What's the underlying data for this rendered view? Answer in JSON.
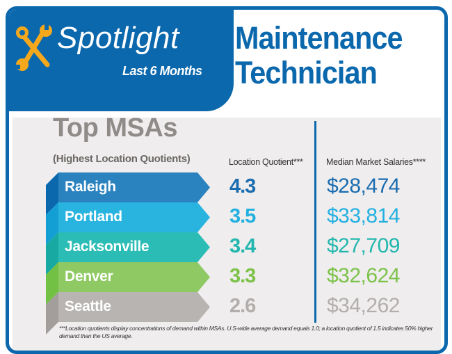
{
  "header": {
    "spotlight": "Spotlight",
    "period": "Last 6 Months",
    "job_title_line1": "Maintenance",
    "job_title_line2": "Technician",
    "icon": "wrench-screwdriver-icon"
  },
  "section": {
    "title": "Top MSAs",
    "subtitle": "(Highest Location Quotients)",
    "col_lq": "Location Quotient***",
    "col_salary": "Median Market Salaries****"
  },
  "rows": [
    {
      "city": "Raleigh",
      "lq": "4.3",
      "salary": "$28,474",
      "color": "#2a82bf",
      "dark": "#0b68ad",
      "text_color": "#1a6cb0"
    },
    {
      "city": "Portland",
      "lq": "3.5",
      "salary": "$33,814",
      "color": "#29b4e0",
      "dark": "#139fd3",
      "text_color": "#23b0e0"
    },
    {
      "city": "Jacksonville",
      "lq": "3.4",
      "salary": "$27,709",
      "color": "#2bbdb5",
      "dark": "#17a9a2",
      "text_color": "#22b7ae"
    },
    {
      "city": "Denver",
      "lq": "3.3",
      "salary": "$32,624",
      "color": "#8ec964",
      "dark": "#72c144",
      "text_color": "#7cc249"
    },
    {
      "city": "Seattle",
      "lq": "2.6",
      "salary": "$34,262",
      "color": "#b8b4b1",
      "dark": "#a39e9b",
      "text_color": "#b2aeab"
    }
  ],
  "footnote": "***Location quotients display concentrations of demand within MSAs. U.S-wide average demand equals 1.0; a location quotient of 1.5 indicates 50% higher demand than the US average."
}
